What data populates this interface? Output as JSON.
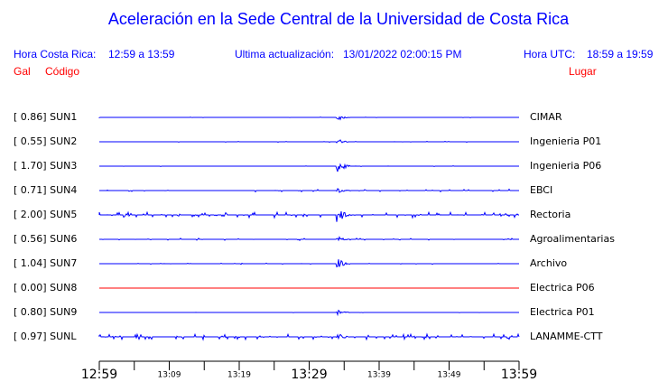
{
  "title": "Aceleración en la Sede Central de la Universidad de Costa Rica",
  "header": {
    "local_label": "Hora Costa Rica:",
    "local_range": "12:59 a 13:59",
    "update_label": "Ultima actualización:",
    "update_value": "13/01/2022 02:00:15 PM",
    "utc_label": "Hora UTC:",
    "utc_range": "18:59 a 19:59"
  },
  "columns": {
    "gal": "Gal",
    "code": "Código",
    "place": "Lugar"
  },
  "stations": [
    {
      "gal": "0.86",
      "code": "SUN1",
      "place": "CIMAR",
      "color": "#0000ff"
    },
    {
      "gal": "0.55",
      "code": "SUN2",
      "place": "Ingenieria P01",
      "color": "#0000ff"
    },
    {
      "gal": "1.70",
      "code": "SUN3",
      "place": "Ingenieria P06",
      "color": "#0000ff"
    },
    {
      "gal": "0.71",
      "code": "SUN4",
      "place": "EBCI",
      "color": "#0000ff"
    },
    {
      "gal": "2.00",
      "code": "SUN5",
      "place": "Rectoria",
      "color": "#0000ff"
    },
    {
      "gal": "0.56",
      "code": "SUN6",
      "place": "Agroalimentarias",
      "color": "#0000ff"
    },
    {
      "gal": "1.04",
      "code": "SUN7",
      "place": "Archivo",
      "color": "#0000ff"
    },
    {
      "gal": "0.00",
      "code": "SUN8",
      "place": "Electrica P06",
      "color": "#ff0000"
    },
    {
      "gal": "0.80",
      "code": "SUN9",
      "place": "Electrica P01",
      "color": "#0000ff"
    },
    {
      "gal": "0.97",
      "code": "SUNL",
      "place": "LANAMME-CTT",
      "color": "#0000ff"
    }
  ],
  "time_axis": [
    {
      "label": "12:59",
      "major": true
    },
    {
      "label": "13:09",
      "major": false
    },
    {
      "label": "13:19",
      "major": false
    },
    {
      "label": "13:29",
      "major": true
    },
    {
      "label": "13:39",
      "major": false
    },
    {
      "label": "13:49",
      "major": false
    },
    {
      "label": "13:59",
      "major": true
    }
  ]
}
